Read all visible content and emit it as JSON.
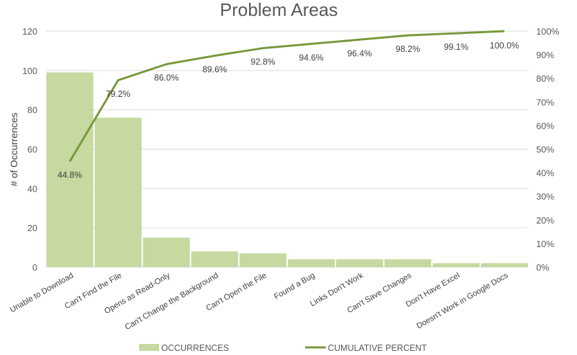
{
  "chart_data": {
    "type": "bar",
    "title": "Problem Areas",
    "xlabel": "",
    "ylabel": "# of Occurrences",
    "ylim": [
      0,
      120
    ],
    "y_ticks": [
      "0",
      "20",
      "40",
      "60",
      "80",
      "100",
      "120"
    ],
    "y2lim": [
      0,
      100
    ],
    "y2_ticks": [
      "0%",
      "10%",
      "20%",
      "30%",
      "40%",
      "50%",
      "60%",
      "70%",
      "80%",
      "90%",
      "100%"
    ],
    "categories": [
      "Unable to Download",
      "Can't Find the File",
      "Opens as Read-Only",
      "Can't Change the Background",
      "Can't Open the File",
      "Found a Bug",
      "Links Don't Work",
      "Can't Save Changes",
      "Don't Have Excel",
      "Doesn't Work in Google Docs"
    ],
    "series": [
      {
        "name": "OCCURRENCES",
        "type": "bar",
        "axis": "left",
        "color": "#c5d9a0",
        "values": [
          99,
          76,
          15,
          8,
          7,
          4,
          4,
          4,
          2,
          2
        ]
      },
      {
        "name": "CUMULATIVE PERCENT",
        "type": "line",
        "axis": "right",
        "color": "#77983a",
        "values": [
          44.8,
          79.2,
          86.0,
          89.6,
          92.8,
          94.6,
          96.4,
          98.2,
          99.1,
          100.0
        ],
        "labels": [
          "44.8%",
          "79.2%",
          "86.0%",
          "89.6%",
          "92.8%",
          "94.6%",
          "96.4%",
          "98.2%",
          "99.1%",
          "100.0%"
        ]
      }
    ],
    "grid": true,
    "legend": "bottom"
  }
}
